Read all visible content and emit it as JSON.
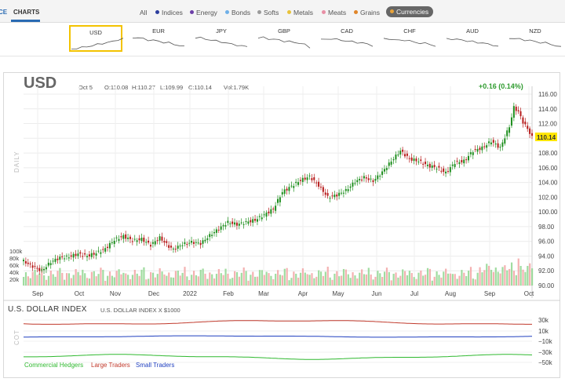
{
  "nav": {
    "prev_tab": "CE",
    "charts_tab": "CHARTS",
    "filters": [
      {
        "label": "All",
        "color": ""
      },
      {
        "label": "Indices",
        "color": "#2c3e9e"
      },
      {
        "label": "Energy",
        "color": "#6c3fa8"
      },
      {
        "label": "Bonds",
        "color": "#6fb0e8"
      },
      {
        "label": "Softs",
        "color": "#9a9a9a"
      },
      {
        "label": "Metals",
        "color": "#e8c23a"
      },
      {
        "label": "Meats",
        "color": "#e88fa5"
      },
      {
        "label": "Grains",
        "color": "#e0862a"
      },
      {
        "label": "Currencies",
        "color": "#e8a33a"
      }
    ]
  },
  "thumbnails": [
    {
      "label": "USD",
      "active": true,
      "trend": [
        0.1,
        0.15,
        0.2,
        0.3,
        0.35,
        0.45,
        0.55,
        0.6,
        0.7,
        0.85,
        0.9
      ]
    },
    {
      "label": "EUR",
      "active": false,
      "trend": [
        0.9,
        0.85,
        0.8,
        0.7,
        0.65,
        0.6,
        0.5,
        0.45,
        0.35,
        0.25,
        0.15
      ]
    },
    {
      "label": "JPY",
      "active": false,
      "trend": [
        0.9,
        0.85,
        0.75,
        0.7,
        0.6,
        0.55,
        0.45,
        0.35,
        0.3,
        0.2,
        0.15
      ]
    },
    {
      "label": "GBP",
      "active": false,
      "trend": [
        0.85,
        0.88,
        0.8,
        0.72,
        0.7,
        0.6,
        0.55,
        0.5,
        0.45,
        0.3,
        0.1
      ]
    },
    {
      "label": "CAD",
      "active": false,
      "trend": [
        0.7,
        0.75,
        0.8,
        0.72,
        0.68,
        0.6,
        0.55,
        0.5,
        0.45,
        0.35,
        0.25
      ]
    },
    {
      "label": "CHF",
      "active": false,
      "trend": [
        0.75,
        0.8,
        0.7,
        0.65,
        0.7,
        0.6,
        0.5,
        0.45,
        0.4,
        0.35,
        0.2
      ]
    },
    {
      "label": "AUD",
      "active": false,
      "trend": [
        0.8,
        0.78,
        0.7,
        0.72,
        0.6,
        0.55,
        0.5,
        0.45,
        0.35,
        0.3,
        0.15
      ]
    },
    {
      "label": "NZD",
      "active": false,
      "trend": [
        0.85,
        0.8,
        0.75,
        0.7,
        0.65,
        0.55,
        0.5,
        0.45,
        0.35,
        0.25,
        0.1
      ]
    }
  ],
  "quote": {
    "symbol": "USD",
    "date": "Oct 5",
    "open": "O:110.08",
    "high": "H:110.27",
    "low": "L:109.99",
    "close": "C:110.14",
    "volume": "Vol:1.79K",
    "change": "+0.16 (0.14%)",
    "last_label": "110.14"
  },
  "side_label": "DAILY",
  "cot_side_label": "COT",
  "chart_data": {
    "type": "candlestick",
    "x_ticks": [
      "Sep",
      "Oct",
      "Nov",
      "Dec",
      "2022",
      "Feb",
      "Mar",
      "Apr",
      "May",
      "Jun",
      "Jul",
      "Aug",
      "Sep",
      "Oct"
    ],
    "y_ticks": [
      "116.00",
      "114.00",
      "112.00",
      "110.00",
      "108.00",
      "106.00",
      "104.00",
      "102.00",
      "100.00",
      "98.00",
      "96.00",
      "94.00",
      "92.00",
      "90.00"
    ],
    "ylim": [
      90,
      116
    ],
    "volume_ticks": [
      "100k",
      "80k",
      "60k",
      "40k",
      "20k"
    ],
    "close_path": [
      [
        0,
        93.3
      ],
      [
        4,
        92.6
      ],
      [
        8,
        92.0
      ],
      [
        12,
        93.2
      ],
      [
        16,
        93.8
      ],
      [
        20,
        93.9
      ],
      [
        24,
        94.3
      ],
      [
        28,
        94.0
      ],
      [
        32,
        94.4
      ],
      [
        36,
        95.0
      ],
      [
        40,
        96.2
      ],
      [
        44,
        96.7
      ],
      [
        48,
        96.1
      ],
      [
        52,
        96.3
      ],
      [
        56,
        95.5
      ],
      [
        60,
        96.5
      ],
      [
        64,
        95.3
      ],
      [
        66,
        94.9
      ],
      [
        70,
        95.6
      ],
      [
        74,
        95.9
      ],
      [
        78,
        95.7
      ],
      [
        82,
        96.8
      ],
      [
        86,
        97.7
      ],
      [
        90,
        98.6
      ],
      [
        94,
        98.3
      ],
      [
        98,
        98.6
      ],
      [
        102,
        98.9
      ],
      [
        106,
        99.6
      ],
      [
        110,
        100.4
      ],
      [
        114,
        102.7
      ],
      [
        118,
        103.5
      ],
      [
        122,
        104.3
      ],
      [
        126,
        104.8
      ],
      [
        130,
        103.6
      ],
      [
        134,
        102.0
      ],
      [
        138,
        102.3
      ],
      [
        142,
        102.9
      ],
      [
        146,
        104.1
      ],
      [
        150,
        104.7
      ],
      [
        154,
        104.2
      ],
      [
        158,
        105.4
      ],
      [
        162,
        106.9
      ],
      [
        166,
        108.3
      ],
      [
        170,
        107.2
      ],
      [
        174,
        106.9
      ],
      [
        178,
        106.3
      ],
      [
        182,
        106.0
      ],
      [
        186,
        105.3
      ],
      [
        190,
        106.7
      ],
      [
        194,
        106.9
      ],
      [
        198,
        108.3
      ],
      [
        202,
        108.7
      ],
      [
        206,
        109.6
      ],
      [
        210,
        108.7
      ],
      [
        214,
        111.6
      ],
      [
        216,
        114.2
      ],
      [
        218,
        113.6
      ],
      [
        220,
        112.2
      ],
      [
        222,
        111.3
      ],
      [
        224,
        110.14
      ]
    ],
    "cot_series": [
      {
        "name": "Commercial Hedgers",
        "color": "#2eb82e"
      },
      {
        "name": "Large Traders",
        "color": "#c0392b"
      },
      {
        "name": "Small Traders",
        "color": "#1f3fbf"
      }
    ],
    "cot_ticks": [
      "30k",
      "10k",
      "−10k",
      "−30k",
      "−50k"
    ]
  },
  "cot": {
    "title": "U.S. DOLLAR INDEX",
    "subtitle": "U.S. DOLLAR INDEX X $1000"
  }
}
